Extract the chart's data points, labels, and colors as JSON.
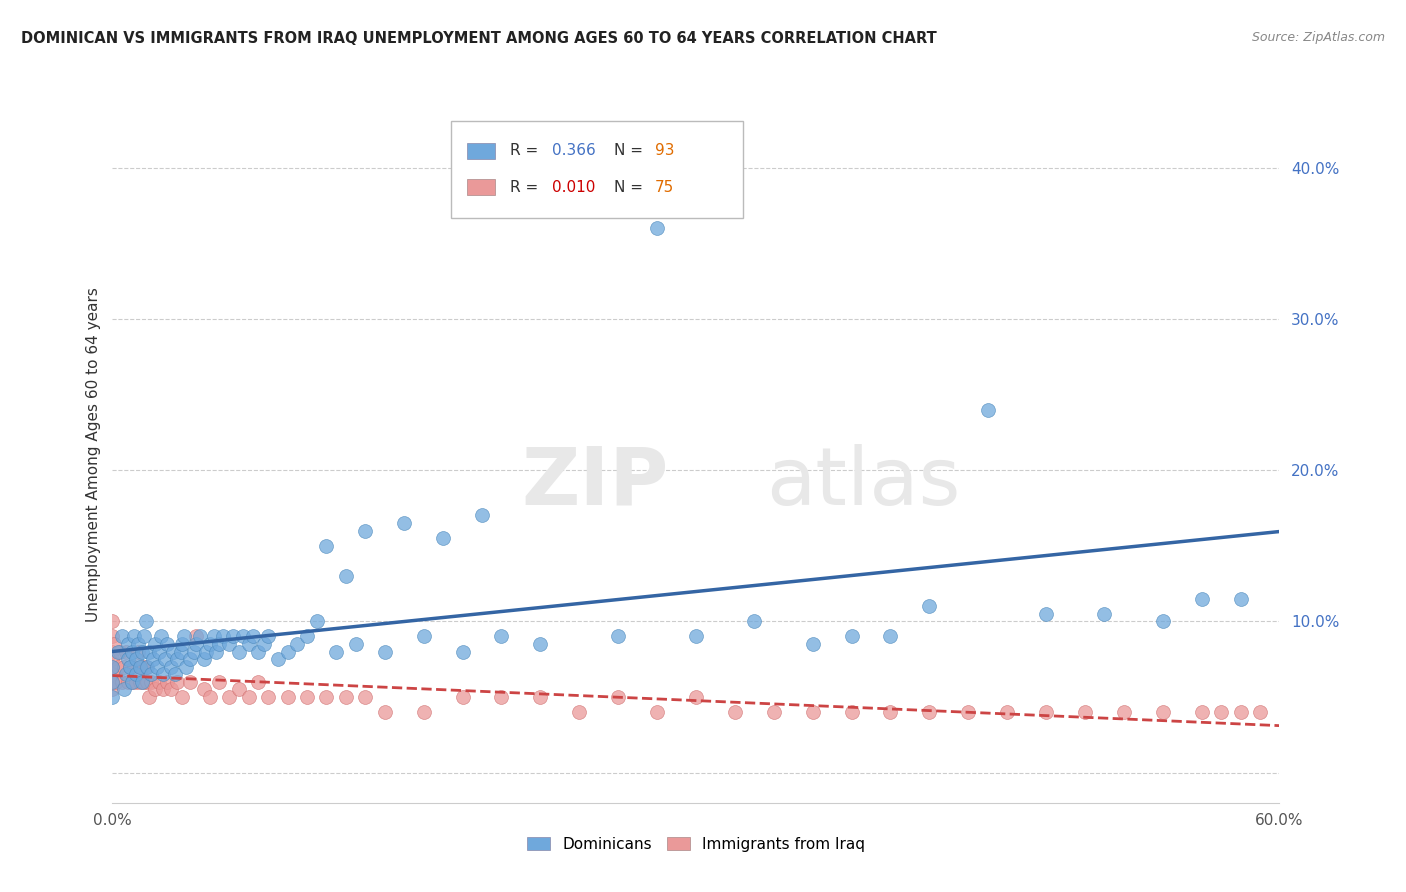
{
  "title": "DOMINICAN VS IMMIGRANTS FROM IRAQ UNEMPLOYMENT AMONG AGES 60 TO 64 YEARS CORRELATION CHART",
  "source": "Source: ZipAtlas.com",
  "ylabel": "Unemployment Among Ages 60 to 64 years",
  "xlim": [
    0.0,
    0.6
  ],
  "ylim": [
    -0.02,
    0.44
  ],
  "yticks": [
    0.0,
    0.1,
    0.2,
    0.3,
    0.4
  ],
  "yticklabels": [
    "",
    "10.0%",
    "20.0%",
    "30.0%",
    "40.0%"
  ],
  "xtick_left": "0.0%",
  "xtick_right": "60.0%",
  "dominican_R": 0.366,
  "dominican_N": 93,
  "iraq_R": 0.01,
  "iraq_N": 75,
  "blue_color": "#6fa8dc",
  "pink_color": "#ea9999",
  "blue_line_color": "#3465a4",
  "pink_line_color": "#cc4444",
  "watermark_zip": "ZIP",
  "watermark_atlas": "atlas",
  "legend_label1": "Dominicans",
  "legend_label2": "Immigrants from Iraq",
  "dominican_x": [
    0.0,
    0.0,
    0.0,
    0.003,
    0.005,
    0.006,
    0.007,
    0.008,
    0.008,
    0.009,
    0.01,
    0.01,
    0.011,
    0.012,
    0.012,
    0.013,
    0.014,
    0.015,
    0.015,
    0.016,
    0.017,
    0.018,
    0.019,
    0.02,
    0.021,
    0.022,
    0.023,
    0.024,
    0.025,
    0.026,
    0.027,
    0.028,
    0.03,
    0.031,
    0.032,
    0.033,
    0.035,
    0.036,
    0.037,
    0.038,
    0.04,
    0.042,
    0.043,
    0.045,
    0.047,
    0.048,
    0.05,
    0.052,
    0.053,
    0.055,
    0.057,
    0.06,
    0.062,
    0.065,
    0.067,
    0.07,
    0.072,
    0.075,
    0.078,
    0.08,
    0.085,
    0.09,
    0.095,
    0.1,
    0.105,
    0.11,
    0.115,
    0.12,
    0.125,
    0.13,
    0.14,
    0.15,
    0.16,
    0.17,
    0.18,
    0.19,
    0.2,
    0.22,
    0.24,
    0.26,
    0.28,
    0.3,
    0.33,
    0.36,
    0.38,
    0.4,
    0.42,
    0.45,
    0.48,
    0.51,
    0.54,
    0.56,
    0.58
  ],
  "dominican_y": [
    0.05,
    0.06,
    0.07,
    0.08,
    0.09,
    0.055,
    0.065,
    0.075,
    0.085,
    0.07,
    0.06,
    0.08,
    0.09,
    0.065,
    0.075,
    0.085,
    0.07,
    0.06,
    0.08,
    0.09,
    0.1,
    0.07,
    0.08,
    0.065,
    0.075,
    0.085,
    0.07,
    0.08,
    0.09,
    0.065,
    0.075,
    0.085,
    0.07,
    0.08,
    0.065,
    0.075,
    0.08,
    0.085,
    0.09,
    0.07,
    0.075,
    0.08,
    0.085,
    0.09,
    0.075,
    0.08,
    0.085,
    0.09,
    0.08,
    0.085,
    0.09,
    0.085,
    0.09,
    0.08,
    0.09,
    0.085,
    0.09,
    0.08,
    0.085,
    0.09,
    0.075,
    0.08,
    0.085,
    0.09,
    0.1,
    0.15,
    0.08,
    0.13,
    0.085,
    0.16,
    0.08,
    0.165,
    0.09,
    0.155,
    0.08,
    0.17,
    0.09,
    0.085,
    0.38,
    0.09,
    0.36,
    0.09,
    0.1,
    0.085,
    0.09,
    0.09,
    0.11,
    0.24,
    0.105,
    0.105,
    0.1,
    0.115,
    0.115
  ],
  "iraq_x": [
    0.0,
    0.0,
    0.0,
    0.0,
    0.0,
    0.0,
    0.0,
    0.0,
    0.001,
    0.002,
    0.003,
    0.004,
    0.005,
    0.006,
    0.007,
    0.008,
    0.009,
    0.01,
    0.011,
    0.012,
    0.013,
    0.014,
    0.015,
    0.016,
    0.017,
    0.018,
    0.019,
    0.02,
    0.022,
    0.024,
    0.026,
    0.028,
    0.03,
    0.033,
    0.036,
    0.04,
    0.043,
    0.047,
    0.05,
    0.055,
    0.06,
    0.065,
    0.07,
    0.075,
    0.08,
    0.09,
    0.1,
    0.11,
    0.12,
    0.13,
    0.14,
    0.16,
    0.18,
    0.2,
    0.22,
    0.24,
    0.26,
    0.28,
    0.3,
    0.32,
    0.34,
    0.36,
    0.38,
    0.4,
    0.42,
    0.44,
    0.46,
    0.48,
    0.5,
    0.52,
    0.54,
    0.56,
    0.57,
    0.58,
    0.59
  ],
  "iraq_y": [
    0.06,
    0.08,
    0.09,
    0.07,
    0.1,
    0.055,
    0.065,
    0.075,
    0.085,
    0.06,
    0.07,
    0.08,
    0.06,
    0.07,
    0.08,
    0.06,
    0.07,
    0.06,
    0.07,
    0.06,
    0.08,
    0.06,
    0.07,
    0.06,
    0.07,
    0.06,
    0.05,
    0.06,
    0.055,
    0.06,
    0.055,
    0.06,
    0.055,
    0.06,
    0.05,
    0.06,
    0.09,
    0.055,
    0.05,
    0.06,
    0.05,
    0.055,
    0.05,
    0.06,
    0.05,
    0.05,
    0.05,
    0.05,
    0.05,
    0.05,
    0.04,
    0.04,
    0.05,
    0.05,
    0.05,
    0.04,
    0.05,
    0.04,
    0.05,
    0.04,
    0.04,
    0.04,
    0.04,
    0.04,
    0.04,
    0.04,
    0.04,
    0.04,
    0.04,
    0.04,
    0.04,
    0.04,
    0.04,
    0.04,
    0.04
  ]
}
